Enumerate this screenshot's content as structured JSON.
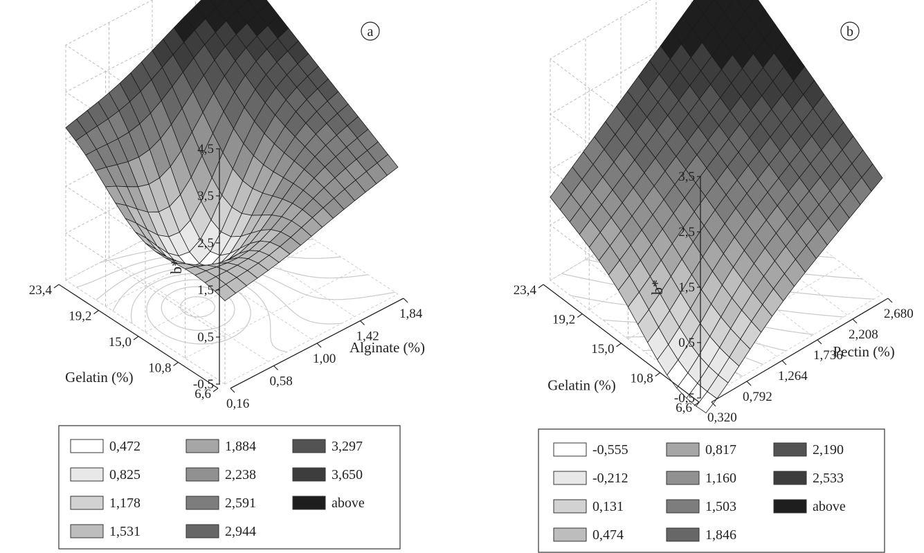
{
  "chart_data": [
    {
      "type": "surface3d",
      "panel_label": "a",
      "zlabel": "b*",
      "xlabel": "Alginate (%)",
      "ylabel": "Gelatin (%)",
      "x_ticks": [
        "0,16",
        "0,58",
        "1,00",
        "1,42",
        "1,84"
      ],
      "y_ticks": [
        "6,6",
        "10,8",
        "15,0",
        "19,2",
        "23,4"
      ],
      "z_ticks": [
        "-0,5",
        "0,5",
        "1,5",
        "2,5",
        "3,5",
        "4,5"
      ],
      "xlim": [
        0.16,
        1.84
      ],
      "ylim": [
        6.6,
        23.4
      ],
      "zlim": [
        -0.5,
        4.5
      ],
      "surface_corners": {
        "x_min_y_min": 1.3,
        "x_max_y_min": 2.2,
        "x_min_y_max": 2.8,
        "x_max_y_max": 4.3,
        "minimum_near": {
          "x": 0.7,
          "y": 15.5,
          "z": 0.4
        }
      },
      "legend": {
        "entries": [
          "0,472",
          "0,825",
          "1,178",
          "1,531",
          "1,884",
          "2,238",
          "2,591",
          "2,944",
          "3,297",
          "3,650",
          "above"
        ],
        "colors": [
          "#ffffff",
          "#e8e8e8",
          "#d2d2d2",
          "#bdbdbd",
          "#a6a6a6",
          "#919191",
          "#7d7d7d",
          "#676767",
          "#535353",
          "#3d3d3d",
          "#1e1e1e"
        ]
      }
    },
    {
      "type": "surface3d",
      "panel_label": "b",
      "zlabel": "b*",
      "xlabel": "Pectin (%)",
      "ylabel": "Gelatin (%)",
      "x_ticks": [
        "0,320",
        "0,792",
        "1,264",
        "1,736",
        "2,208",
        "2,680"
      ],
      "y_ticks": [
        "6,6",
        "10,8",
        "15,0",
        "19,2",
        "23,4"
      ],
      "z_ticks": [
        "-0,5",
        "0,5",
        "1,5",
        "2,5",
        "3,5"
      ],
      "xlim": [
        0.32,
        2.68
      ],
      "ylim": [
        6.6,
        23.4
      ],
      "zlim": [
        -0.5,
        3.5
      ],
      "surface_corners": {
        "x_min_y_min": -0.4,
        "x_max_y_min": 1.6,
        "x_min_y_max": 1.0,
        "x_max_y_max": 3.5,
        "minimum_near": {
          "x": 0.32,
          "y": 10.0,
          "z": -0.7
        }
      },
      "legend": {
        "entries": [
          "-0,555",
          "-0,212",
          "0,131",
          "0,474",
          "0,817",
          "1,160",
          "1,503",
          "1,846",
          "2,190",
          "2,533",
          "above"
        ],
        "colors": [
          "#ffffff",
          "#e8e8e8",
          "#d2d2d2",
          "#bdbdbd",
          "#a6a6a6",
          "#919191",
          "#7d7d7d",
          "#676767",
          "#535353",
          "#3d3d3d",
          "#1e1e1e"
        ]
      }
    }
  ]
}
